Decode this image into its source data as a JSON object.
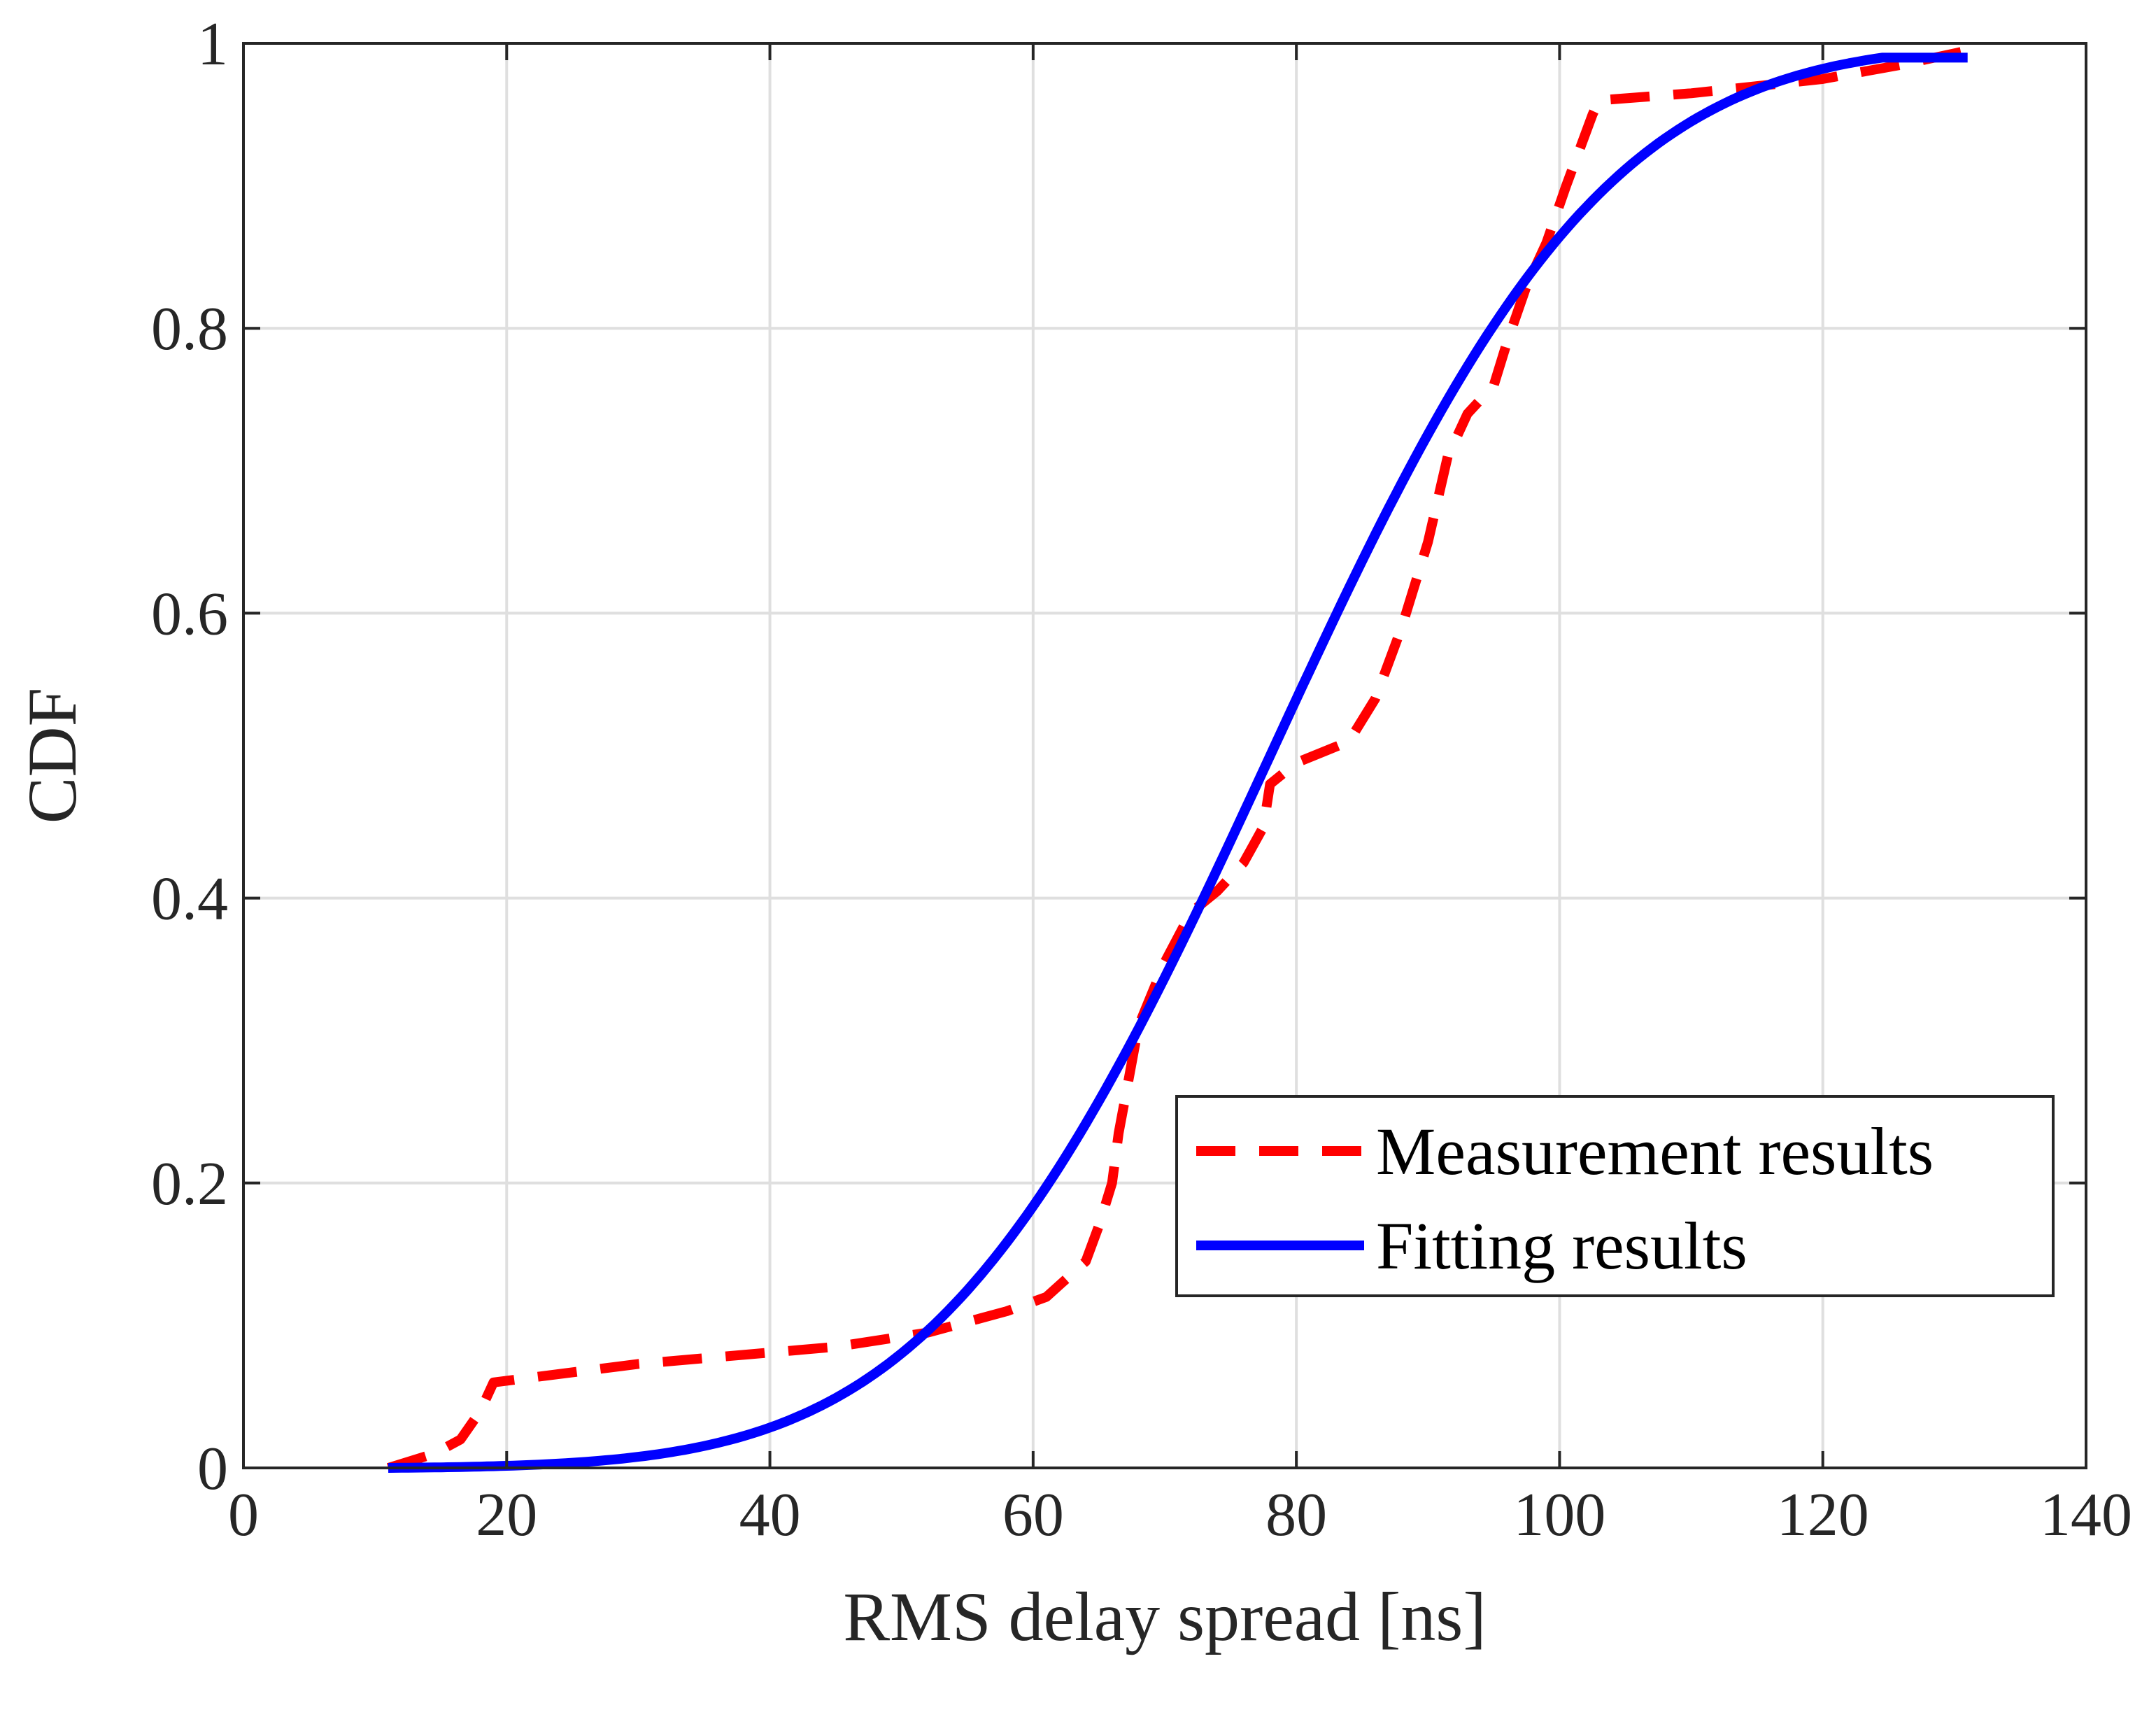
{
  "chart_data": {
    "type": "line",
    "title": "",
    "xlabel": "RMS delay spread [ns]",
    "ylabel": "CDF",
    "xlim": [
      0,
      140
    ],
    "ylim": [
      0,
      1
    ],
    "xticks": [
      0,
      20,
      40,
      60,
      80,
      100,
      120,
      140
    ],
    "yticks": [
      0,
      0.2,
      0.4,
      0.6,
      0.8,
      1
    ],
    "xtick_labels": [
      "0",
      "20",
      "40",
      "60",
      "80",
      "100",
      "120",
      "140"
    ],
    "ytick_labels": [
      "0",
      "0.2",
      "0.4",
      "0.6",
      "0.8",
      "1"
    ],
    "grid": true,
    "legend_position": "lower-right",
    "series": [
      {
        "name": "Measurement results",
        "color": "#ff0000",
        "style": "dashed",
        "x": [
          11,
          14.5,
          16.5,
          18,
          19,
          30,
          40,
          45,
          52,
          58,
          61,
          64,
          65,
          66,
          66.5,
          67,
          68,
          70,
          72,
          74,
          76,
          77.5,
          78,
          80,
          84,
          86,
          88,
          90,
          90.5,
          91.5,
          93,
          95,
          96,
          97.5,
          99,
          100.5,
          102.5,
          103,
          110,
          120,
          126,
          131
        ],
        "y": [
          0,
          0.01,
          0.02,
          0.04,
          0.06,
          0.073,
          0.081,
          0.085,
          0.095,
          0.11,
          0.12,
          0.145,
          0.17,
          0.2,
          0.235,
          0.26,
          0.31,
          0.355,
          0.39,
          0.405,
          0.425,
          0.45,
          0.48,
          0.495,
          0.51,
          0.54,
          0.59,
          0.65,
          0.67,
          0.71,
          0.74,
          0.76,
          0.79,
          0.83,
          0.86,
          0.9,
          0.95,
          0.96,
          0.965,
          0.975,
          0.985,
          0.995
        ]
      },
      {
        "name": "Fitting results",
        "color": "#0000ff",
        "style": "solid",
        "model": {
          "distribution": "normal",
          "mean": 78,
          "std": 20
        },
        "x_range": [
          11,
          131
        ]
      }
    ]
  }
}
